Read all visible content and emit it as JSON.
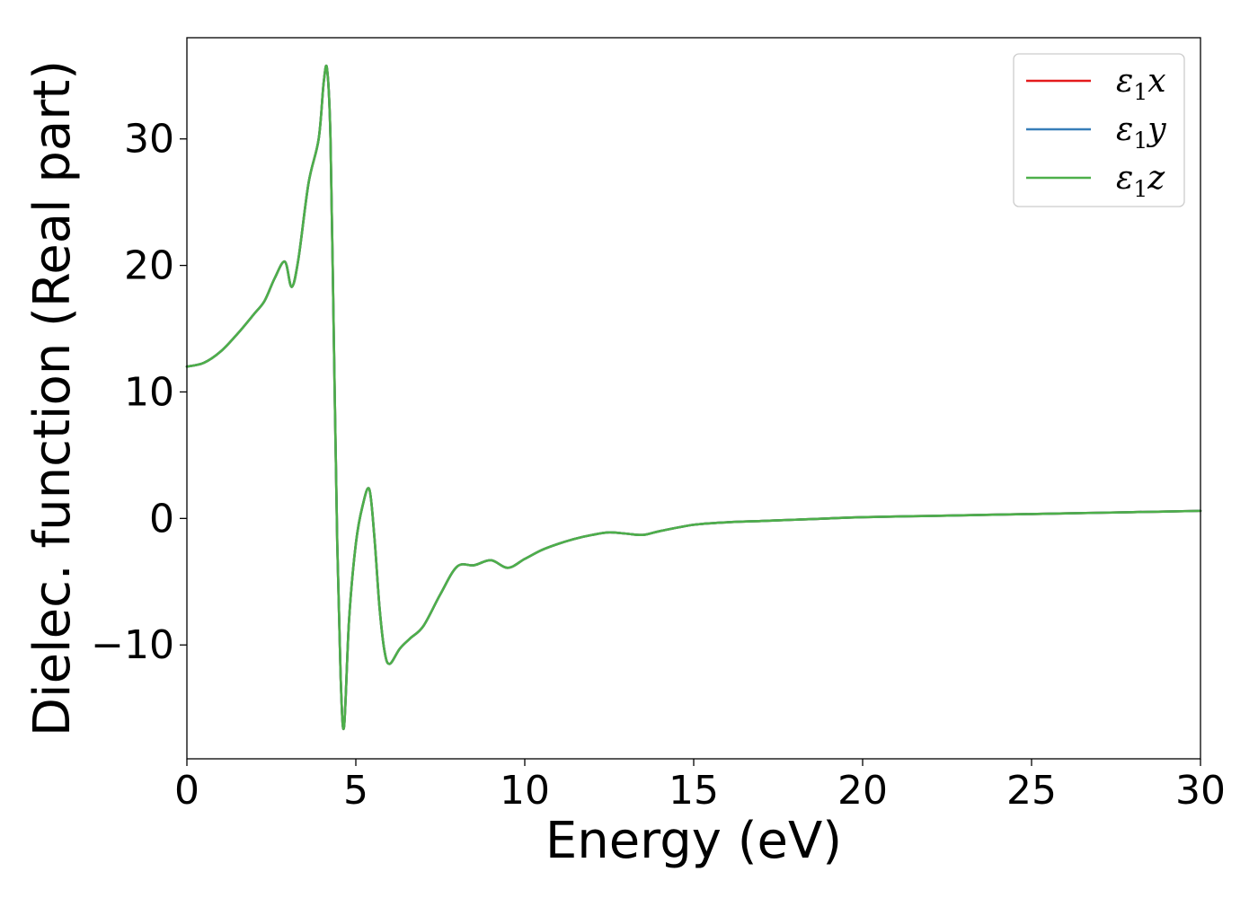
{
  "chart_data": {
    "type": "line",
    "title": "",
    "xlabel": "Energy (eV)",
    "ylabel": "Dielec. function (Real part)",
    "xlim": [
      0,
      30
    ],
    "ylim": [
      -19,
      38
    ],
    "xticks": [
      0,
      5,
      10,
      15,
      20,
      25,
      30
    ],
    "yticks": [
      -10,
      0,
      10,
      20,
      30
    ],
    "ytick_labels": [
      "−10",
      "0",
      "10",
      "20",
      "30"
    ],
    "grid": false,
    "legend_position": "top-right",
    "series": [
      {
        "name": "x",
        "legend_symbol": "ε",
        "legend_subscript": "1",
        "color": "#e41a1c",
        "x": [
          0,
          0.5,
          1.0,
          1.5,
          2.0,
          2.3,
          2.6,
          2.9,
          3.1,
          3.3,
          3.6,
          3.9,
          4.05,
          4.15,
          4.25,
          4.35,
          4.45,
          4.55,
          4.65,
          4.8,
          5.0,
          5.2,
          5.4,
          5.55,
          5.7,
          5.85,
          6.0,
          6.3,
          6.6,
          7.0,
          7.5,
          8.0,
          8.5,
          9.0,
          9.5,
          10.0,
          10.5,
          11.0,
          11.5,
          12.0,
          12.5,
          13.0,
          13.5,
          14.0,
          15.0,
          16.0,
          17.0,
          18.0,
          19.0,
          20.0,
          22.0,
          24.0,
          26.0,
          28.0,
          30.0
        ],
        "y": [
          12.0,
          12.3,
          13.2,
          14.6,
          16.2,
          17.2,
          19.0,
          20.3,
          18.3,
          20.5,
          26.5,
          30.0,
          34.5,
          35.5,
          30.0,
          14.0,
          -2.0,
          -12.5,
          -16.5,
          -8.0,
          -2.0,
          1.0,
          2.3,
          -1.5,
          -7.0,
          -10.5,
          -11.5,
          -10.3,
          -9.5,
          -8.5,
          -6.0,
          -3.8,
          -3.7,
          -3.3,
          -3.9,
          -3.2,
          -2.5,
          -2.0,
          -1.6,
          -1.3,
          -1.1,
          -1.2,
          -1.3,
          -1.0,
          -0.5,
          -0.3,
          -0.2,
          -0.1,
          0.0,
          0.1,
          0.2,
          0.3,
          0.4,
          0.5,
          0.6
        ]
      },
      {
        "name": "y",
        "legend_symbol": "ε",
        "legend_subscript": "1",
        "color": "#377eb8",
        "x": [
          0,
          0.5,
          1.0,
          1.5,
          2.0,
          2.3,
          2.6,
          2.9,
          3.1,
          3.3,
          3.6,
          3.9,
          4.05,
          4.15,
          4.25,
          4.35,
          4.45,
          4.55,
          4.65,
          4.8,
          5.0,
          5.2,
          5.4,
          5.55,
          5.7,
          5.85,
          6.0,
          6.3,
          6.6,
          7.0,
          7.5,
          8.0,
          8.5,
          9.0,
          9.5,
          10.0,
          10.5,
          11.0,
          11.5,
          12.0,
          12.5,
          13.0,
          13.5,
          14.0,
          15.0,
          16.0,
          17.0,
          18.0,
          19.0,
          20.0,
          22.0,
          24.0,
          26.0,
          28.0,
          30.0
        ],
        "y": [
          12.0,
          12.3,
          13.2,
          14.6,
          16.2,
          17.2,
          19.0,
          20.3,
          18.3,
          20.5,
          26.5,
          30.0,
          34.5,
          35.5,
          30.0,
          14.0,
          -2.0,
          -12.5,
          -16.5,
          -8.0,
          -2.0,
          1.0,
          2.3,
          -1.5,
          -7.0,
          -10.5,
          -11.5,
          -10.3,
          -9.5,
          -8.5,
          -6.0,
          -3.8,
          -3.7,
          -3.3,
          -3.9,
          -3.2,
          -2.5,
          -2.0,
          -1.6,
          -1.3,
          -1.1,
          -1.2,
          -1.3,
          -1.0,
          -0.5,
          -0.3,
          -0.2,
          -0.1,
          0.0,
          0.1,
          0.2,
          0.3,
          0.4,
          0.5,
          0.6
        ]
      },
      {
        "name": "z",
        "legend_symbol": "ε",
        "legend_subscript": "1",
        "color": "#4daf4a",
        "x": [
          0,
          0.5,
          1.0,
          1.5,
          2.0,
          2.3,
          2.6,
          2.9,
          3.1,
          3.3,
          3.6,
          3.9,
          4.05,
          4.15,
          4.25,
          4.35,
          4.45,
          4.55,
          4.65,
          4.8,
          5.0,
          5.2,
          5.4,
          5.55,
          5.7,
          5.85,
          6.0,
          6.3,
          6.6,
          7.0,
          7.5,
          8.0,
          8.5,
          9.0,
          9.5,
          10.0,
          10.5,
          11.0,
          11.5,
          12.0,
          12.5,
          13.0,
          13.5,
          14.0,
          15.0,
          16.0,
          17.0,
          18.0,
          19.0,
          20.0,
          22.0,
          24.0,
          26.0,
          28.0,
          30.0
        ],
        "y": [
          12.0,
          12.3,
          13.2,
          14.6,
          16.2,
          17.2,
          19.0,
          20.3,
          18.3,
          20.5,
          26.5,
          30.0,
          34.5,
          35.5,
          30.0,
          14.0,
          -2.0,
          -12.5,
          -16.5,
          -8.0,
          -2.0,
          1.0,
          2.3,
          -1.5,
          -7.0,
          -10.5,
          -11.5,
          -10.3,
          -9.5,
          -8.5,
          -6.0,
          -3.8,
          -3.7,
          -3.3,
          -3.9,
          -3.2,
          -2.5,
          -2.0,
          -1.6,
          -1.3,
          -1.1,
          -1.2,
          -1.3,
          -1.0,
          -0.5,
          -0.3,
          -0.2,
          -0.1,
          0.0,
          0.1,
          0.2,
          0.3,
          0.4,
          0.5,
          0.6
        ]
      }
    ]
  }
}
